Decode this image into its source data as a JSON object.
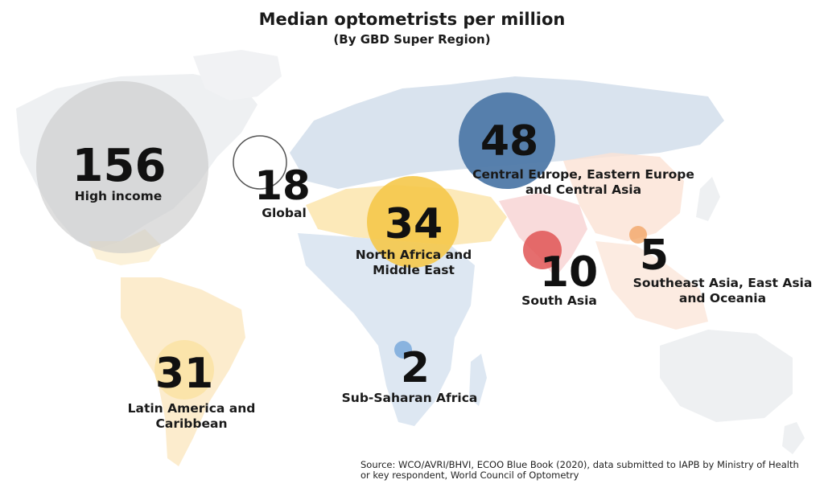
{
  "header": {
    "title": "Median optometrists per million",
    "subtitle": "(By GBD Super Region)"
  },
  "source": {
    "line1": "Source: WCO/AVRI/BHVI, ECOO Blue Book (2020), data submitted to IAPB by Ministry of Health",
    "line2": "or key respondent, World Council of Optometry"
  },
  "colors": {
    "high_income": "#c8c8c8",
    "global_ring": "#555555",
    "central_europe": "#4f79a8",
    "north_africa": "#f5c84a",
    "south_asia": "#e05555",
    "southeast_asia": "#f2a25f",
    "latin_america": "#fbe3a6",
    "sub_saharan": "#7aa9dc",
    "map_light": "#e9eef3"
  },
  "chart_data": {
    "type": "bubble-map",
    "title": "Median optometrists per million",
    "subtitle": "(By GBD Super Region)",
    "unit": "optometrists per million",
    "regions": [
      {
        "key": "high_income",
        "name": "High income",
        "lines": [
          "High income"
        ],
        "value": 156
      },
      {
        "key": "global",
        "name": "Global",
        "lines": [
          "Global"
        ],
        "value": 18
      },
      {
        "key": "central_europe",
        "name": "Central Europe, Eastern Europe and Central Asia",
        "lines": [
          "Central Europe, Eastern Europe",
          "and Central Asia"
        ],
        "value": 48
      },
      {
        "key": "north_africa",
        "name": "North Africa and Middle East",
        "lines": [
          "North Africa and",
          "Middle East"
        ],
        "value": 34
      },
      {
        "key": "south_asia",
        "name": "South Asia",
        "lines": [
          "South Asia"
        ],
        "value": 10
      },
      {
        "key": "southeast_asia",
        "name": "Southeast Asia, East Asia and Oceania",
        "lines": [
          "Southeast Asia, East Asia",
          "and Oceania"
        ],
        "value": 5
      },
      {
        "key": "latin_america",
        "name": "Latin America and Caribbean",
        "lines": [
          "Latin America and",
          "Caribbean"
        ],
        "value": 31
      },
      {
        "key": "sub_saharan",
        "name": "Sub-Saharan Africa",
        "lines": [
          "Sub-Saharan Africa"
        ],
        "value": 2
      }
    ]
  }
}
